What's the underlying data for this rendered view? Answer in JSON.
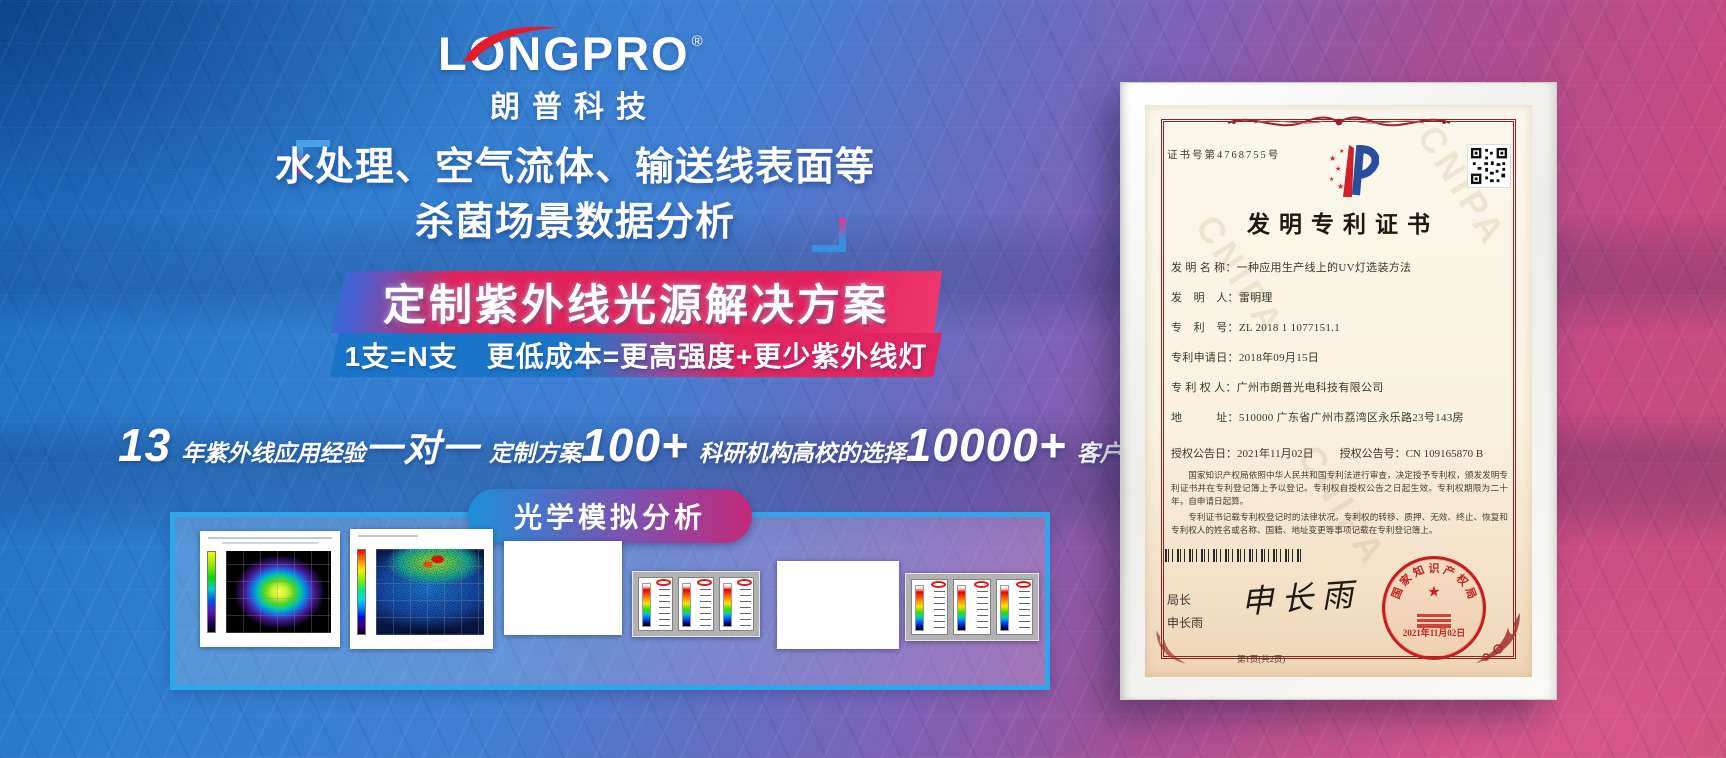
{
  "brand": {
    "logo_text": "LONGPRO",
    "logo_reg": "®",
    "logo_cn": "朗普科技"
  },
  "headline": {
    "line1": "水处理、空气流体、输送线表面等",
    "line2": "杀菌场景数据分析"
  },
  "banner": {
    "main": "定制紫外线光源解决方案",
    "sub": "1支=N支　更低成本=更高强度+更少紫外线灯"
  },
  "stats": [
    {
      "value": "13",
      "label": "年紫外线应用经验"
    },
    {
      "value": "一对一",
      "label": "定制方案"
    },
    {
      "value": "100+",
      "label": "科研机构高校的选择"
    },
    {
      "value": "10000+",
      "label": "客户案例见证"
    }
  ],
  "simulation": {
    "badge": "光学模拟分析"
  },
  "certificate": {
    "cert_no": "证书号第4768755号",
    "title": "发明专利证书",
    "fields": [
      {
        "label": "发 明 名 称：",
        "value": "一种应用生产线上的UV灯选装方法"
      },
      {
        "label": "发　明　人：",
        "value": "雷明理"
      },
      {
        "label": "专　利　号：",
        "value": "ZL 2018 1 1077151.1"
      },
      {
        "label": "专利申请日：",
        "value": "2018年09月15日"
      },
      {
        "label": "专 利 权 人：",
        "value": "广州市朗普光电科技有限公司"
      },
      {
        "label": "地　　　址：",
        "value": "510000 广东省广州市荔湾区永乐路23号143房"
      }
    ],
    "grant_date_label": "授权公告日：",
    "grant_date": "2021年11月02日",
    "grant_no_label": "授权公告号：",
    "grant_no": "CN 109165870 B",
    "legal_p1": "国家知识产权局依照中华人民共和国专利法进行审查，决定授予专利权，颁发发明专利证书并在专利登记簿上予以登记。专利权自授权公告之日起生效。专利权期限为二十年，自申请日起算。",
    "legal_p2": "专利证书记载专利权登记时的法律状况。专利权的转移、质押、无效、终止、恢复和专利权人的姓名或名称、国籍、地址变更等事项记载在专利登记簿上。",
    "director_label": "局长",
    "director_name": "申长雨",
    "signature": "申长雨",
    "seal_text": "国家知识产权局",
    "seal_date": "2021年11月02日",
    "page_footer": "第1页(共2页)",
    "watermark": "CNIPA"
  },
  "colors": {
    "accent_pink": "#e02560",
    "accent_blue": "#1a75c8",
    "panel_border": "#2ea6ec",
    "logo_red": "#e51a2c",
    "seal_red": "#c41f1f"
  }
}
